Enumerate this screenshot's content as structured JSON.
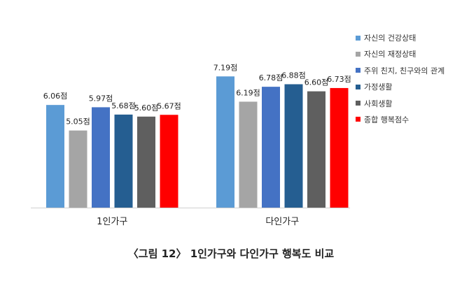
{
  "chart_data": {
    "type": "bar",
    "categories": [
      "1인가구",
      "다인가구"
    ],
    "series": [
      {
        "name": "자신의 건강상태",
        "color": "#5b9bd5",
        "values": [
          6.06,
          7.19
        ],
        "labels": [
          "6.06점",
          "7.19점"
        ]
      },
      {
        "name": "자신의 재정상태",
        "color": "#a5a5a5",
        "values": [
          5.05,
          6.19
        ],
        "labels": [
          "5.05점",
          "6.19점"
        ]
      },
      {
        "name": "주위 친지, 친구와의 관계",
        "color": "#4472c4",
        "values": [
          5.97,
          6.78
        ],
        "labels": [
          "5.97점",
          "6.78점"
        ]
      },
      {
        "name": "가정생활",
        "color": "#255e91",
        "values": [
          5.68,
          6.88
        ],
        "labels": [
          "5.68점",
          "6.88점"
        ]
      },
      {
        "name": "사회생활",
        "color": "#5f5f5f",
        "values": [
          5.6,
          6.6
        ],
        "labels": [
          "5.60점",
          "6.60점"
        ]
      },
      {
        "name": "종합 행복점수",
        "color": "#ff0000",
        "values": [
          5.67,
          6.73
        ],
        "labels": [
          "5.67점",
          "6.73점"
        ]
      }
    ],
    "ylim": [
      2.0,
      8.0
    ],
    "grid": false,
    "legend_position": "right"
  },
  "caption": "〈그림 12〉 1인가구와 다인가구 행복도 비교"
}
